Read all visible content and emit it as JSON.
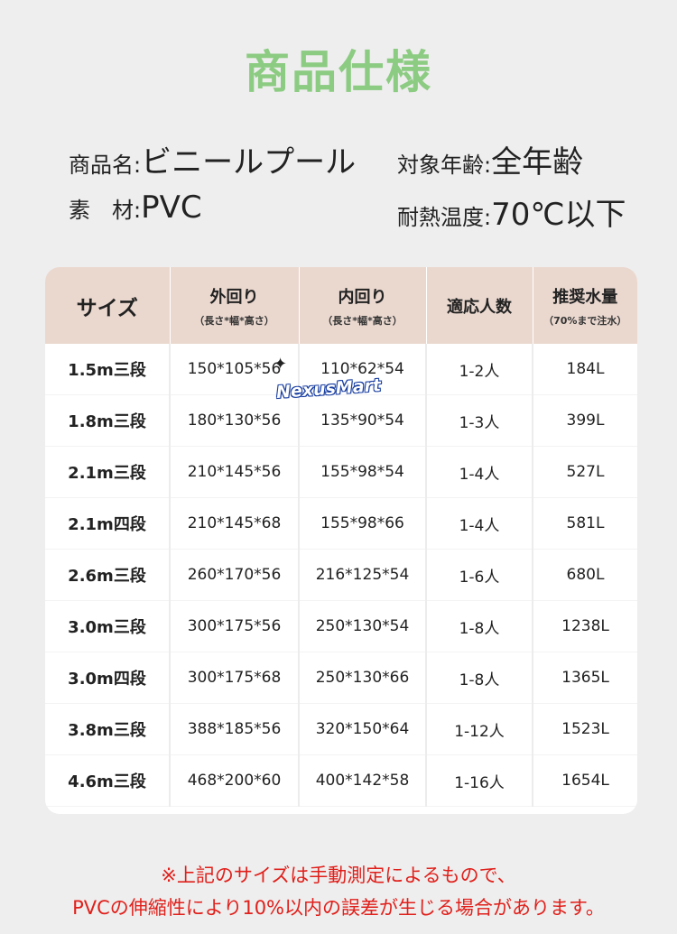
{
  "title": "商品仕様",
  "specs": {
    "name_label": "商品名:",
    "name_value": "ビニールプール",
    "age_label": "対象年齢:",
    "age_value": "全年齢",
    "material_label": "素　材:",
    "material_value": "PVC",
    "heat_label": "耐熱温度:",
    "heat_value": "70℃以下"
  },
  "table": {
    "headers": [
      {
        "main": "サイズ",
        "sub": ""
      },
      {
        "main": "外回り",
        "sub": "（長さ*幅*高さ）"
      },
      {
        "main": "内回り",
        "sub": "（長さ*幅*高さ）"
      },
      {
        "main": "適応人数",
        "sub": ""
      },
      {
        "main": "推奨水量",
        "sub": "（70%まで注水）"
      }
    ],
    "rows": [
      [
        "1.5m三段",
        "150*105*56",
        "110*62*54",
        "1-2人",
        "184L"
      ],
      [
        "1.8m三段",
        "180*130*56",
        "135*90*54",
        "1-3人",
        "399L"
      ],
      [
        "2.1m三段",
        "210*145*56",
        "155*98*54",
        "1-4人",
        "527L"
      ],
      [
        "2.1m四段",
        "210*145*68",
        "155*98*66",
        "1-4人",
        "581L"
      ],
      [
        "2.6m三段",
        "260*170*56",
        "216*125*54",
        "1-6人",
        "680L"
      ],
      [
        "3.0m三段",
        "300*175*56",
        "250*130*54",
        "1-8人",
        "1238L"
      ],
      [
        "3.0m四段",
        "300*175*68",
        "250*130*66",
        "1-8人",
        "1365L"
      ],
      [
        "3.8m三段",
        "388*185*56",
        "320*150*64",
        "1-12人",
        "1523L"
      ],
      [
        "4.6m三段",
        "468*200*60",
        "400*142*58",
        "1-16人",
        "1654L"
      ]
    ]
  },
  "watermark": "NexusMart",
  "notes": {
    "line1": "※上記のサイズは手動測定によるもので、",
    "line2": "PVCの伸縮性により10%以内の誤差が生じる場合があります。"
  },
  "colors": {
    "title": "#8ccb82",
    "header_bg": "#ead8cf",
    "note": "#e0201b"
  }
}
